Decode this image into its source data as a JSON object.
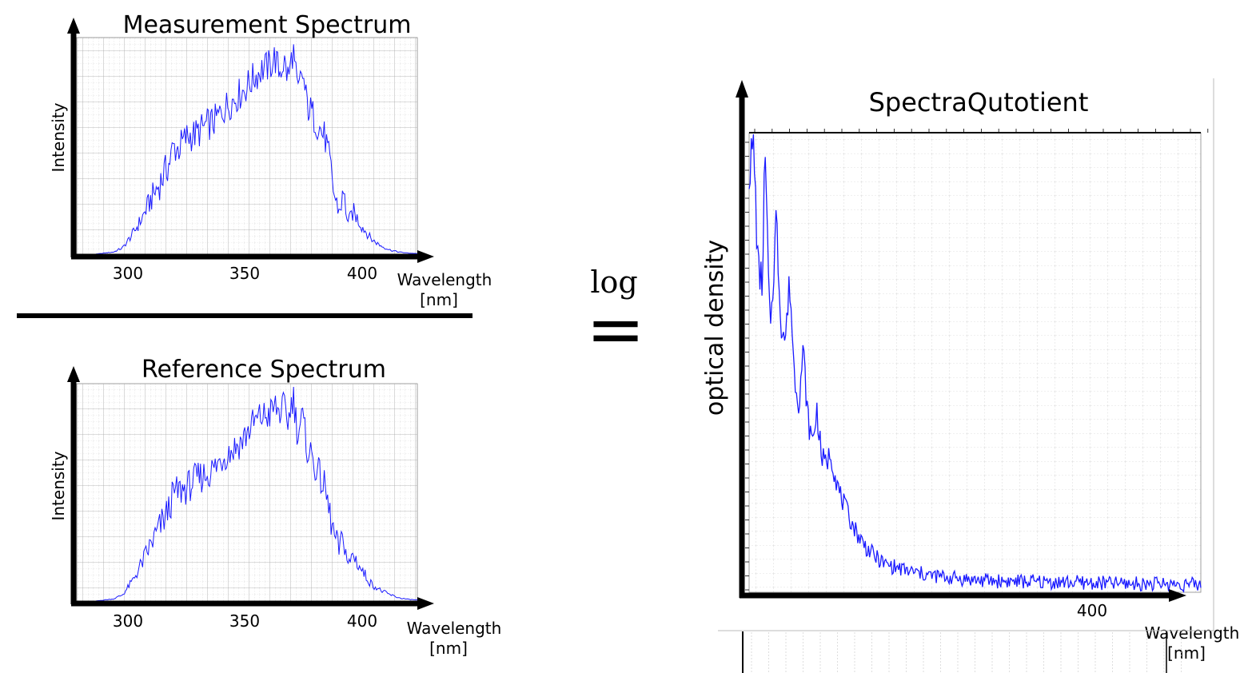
{
  "equation": {
    "log_label": "log",
    "equals_sign": "="
  },
  "colors": {
    "spectrum_line": "#1a1aff",
    "axis": "#000000",
    "grid": "#b5b5b5"
  },
  "chart_data": [
    {
      "type": "line",
      "title": "Measurement Spectrum",
      "xlabel": "Wavelength [nm]",
      "xlabel_lines": [
        "Wavelength",
        "[nm]"
      ],
      "ylabel": "Intensity",
      "x_ticks": [
        "300",
        "350",
        "400"
      ],
      "xlim": [
        276,
        424
      ],
      "ylim": [
        0,
        1
      ],
      "grid": true,
      "series": [
        {
          "x": [
            276,
            284,
            292,
            296,
            300,
            304,
            308,
            312,
            316,
            318,
            320,
            324,
            328,
            332,
            336,
            340,
            344,
            348,
            352,
            356,
            360,
            362,
            364,
            366,
            368,
            370,
            372,
            374,
            376,
            378,
            380,
            382,
            384,
            386,
            388,
            390,
            392,
            394,
            396,
            400,
            404,
            408,
            412,
            416,
            420,
            424
          ],
          "y": [
            0,
            0,
            0.01,
            0.03,
            0.09,
            0.16,
            0.25,
            0.33,
            0.42,
            0.5,
            0.49,
            0.55,
            0.56,
            0.6,
            0.62,
            0.68,
            0.72,
            0.76,
            0.81,
            0.86,
            0.88,
            0.92,
            0.85,
            0.9,
            0.82,
            0.96,
            0.74,
            0.85,
            0.7,
            0.66,
            0.62,
            0.58,
            0.54,
            0.42,
            0.27,
            0.2,
            0.28,
            0.14,
            0.2,
            0.13,
            0.07,
            0.04,
            0.02,
            0.01,
            0.005,
            0.003
          ]
        }
      ]
    },
    {
      "type": "line",
      "title": "Reference Spectrum",
      "xlabel": "Wavelength [nm]",
      "xlabel_lines": [
        "Wavelength",
        "[nm]"
      ],
      "ylabel": "Intensity",
      "x_ticks": [
        "300",
        "350",
        "400"
      ],
      "xlim": [
        276,
        424
      ],
      "ylim": [
        0,
        1
      ],
      "grid": true,
      "series": [
        {
          "x": [
            276,
            284,
            292,
            296,
            300,
            304,
            308,
            312,
            316,
            318,
            320,
            324,
            328,
            332,
            336,
            340,
            344,
            348,
            352,
            356,
            360,
            362,
            364,
            366,
            368,
            370,
            372,
            374,
            376,
            378,
            380,
            382,
            384,
            386,
            388,
            390,
            392,
            394,
            396,
            400,
            404,
            408,
            412,
            416,
            420,
            424
          ],
          "y": [
            0,
            0,
            0.01,
            0.03,
            0.09,
            0.17,
            0.26,
            0.34,
            0.43,
            0.5,
            0.51,
            0.53,
            0.57,
            0.59,
            0.62,
            0.68,
            0.71,
            0.75,
            0.82,
            0.86,
            0.87,
            0.91,
            0.88,
            0.9,
            0.84,
            0.97,
            0.78,
            0.86,
            0.72,
            0.68,
            0.62,
            0.57,
            0.52,
            0.4,
            0.3,
            0.24,
            0.3,
            0.16,
            0.22,
            0.14,
            0.08,
            0.05,
            0.03,
            0.015,
            0.008,
            0.005
          ]
        }
      ]
    },
    {
      "type": "line",
      "title": "SpectraQutotient",
      "xlabel": "Wavelength [nm]",
      "xlabel_lines": [
        "Wavelength",
        "[nm]"
      ],
      "ylabel": "optical density",
      "x_ticks": [
        "400"
      ],
      "grid": true,
      "series": [
        {
          "x": [
            0,
            0.01,
            0.02,
            0.03,
            0.035,
            0.045,
            0.05,
            0.06,
            0.07,
            0.08,
            0.09,
            0.1,
            0.11,
            0.12,
            0.13,
            0.14,
            0.15,
            0.16,
            0.17,
            0.18,
            0.19,
            0.2,
            0.22,
            0.24,
            0.26,
            0.28,
            0.3,
            0.35,
            0.4,
            0.45,
            0.5,
            0.55,
            0.6,
            0.65,
            0.7,
            0.75,
            0.8,
            0.85,
            0.9,
            0.95,
            1.0
          ],
          "y": [
            0.92,
            0.98,
            0.7,
            0.68,
            0.97,
            0.6,
            0.62,
            0.82,
            0.6,
            0.55,
            0.68,
            0.48,
            0.42,
            0.53,
            0.38,
            0.33,
            0.4,
            0.3,
            0.28,
            0.31,
            0.26,
            0.22,
            0.17,
            0.13,
            0.1,
            0.08,
            0.065,
            0.05,
            0.04,
            0.035,
            0.03,
            0.028,
            0.027,
            0.026,
            0.025,
            0.024,
            0.023,
            0.022,
            0.022,
            0.021,
            0.02
          ]
        }
      ]
    }
  ]
}
